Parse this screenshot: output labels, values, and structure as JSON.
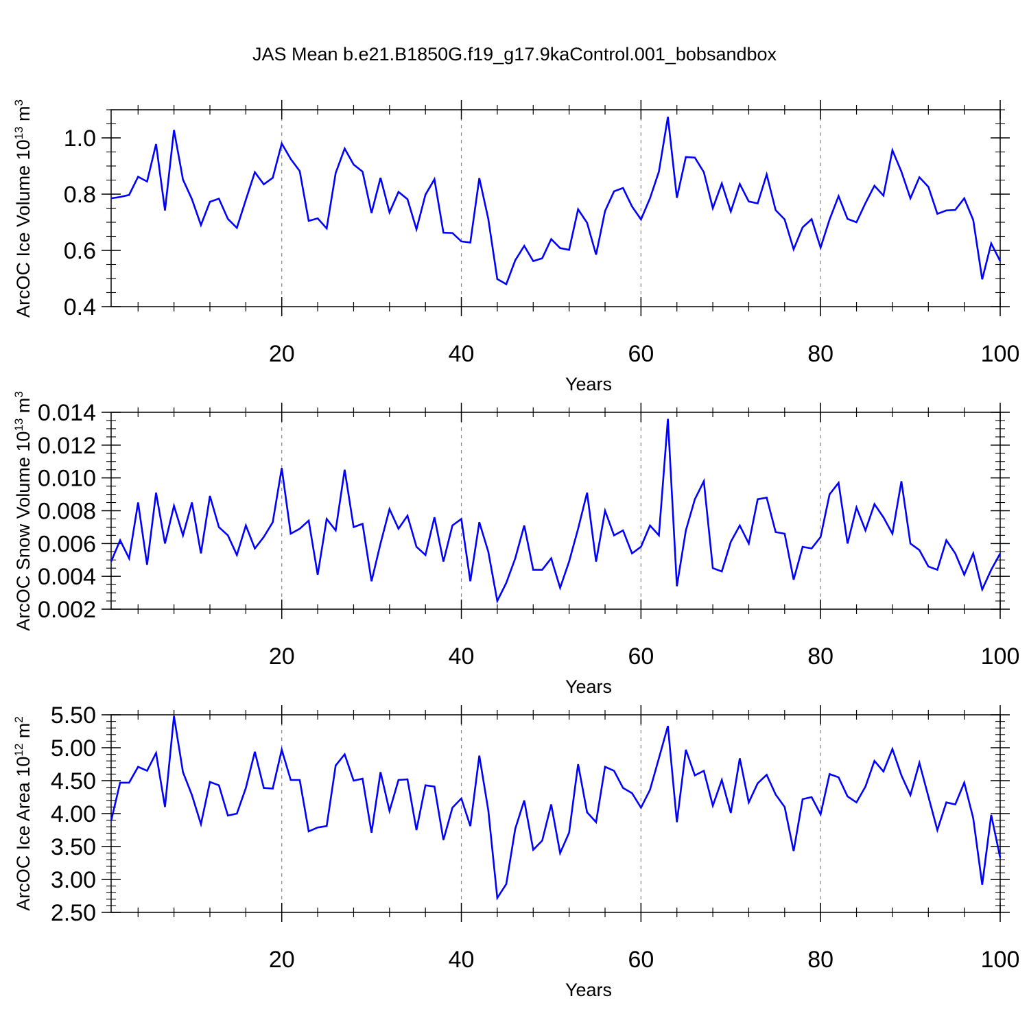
{
  "title": "JAS Mean b.e21.B1850G.f19_g17.9kaControl.001_bobsandbox",
  "colors": {
    "line": "#0000ff",
    "axis": "#000000",
    "grid": "#888888"
  },
  "chart_data": [
    {
      "type": "line",
      "ylabel": "ArcOC Ice Volume 10",
      "ylabel_sup_exp": "13",
      "ylabel_unit": "m",
      "ylabel_unit_sup": "3",
      "xlabel": "Years",
      "xlim": [
        1,
        100
      ],
      "ylim": [
        0.4,
        1.1
      ],
      "xticks": [
        20,
        40,
        60,
        80,
        100
      ],
      "xtick_labels": [
        "20",
        "40",
        "60",
        "80",
        "100"
      ],
      "yticks": [
        0.4,
        0.6,
        0.8,
        1.0
      ],
      "ytick_labels": [
        "0.4",
        "0.6",
        "0.8",
        "1.0"
      ],
      "x_minor_step": 4,
      "y_minor_step": 0.05,
      "grid": "vertical dashed at major x ticks",
      "series": [
        {
          "values": [
            0.785,
            0.79,
            0.797,
            0.862,
            0.845,
            0.978,
            0.742,
            1.028,
            0.852,
            0.782,
            0.69,
            0.773,
            0.784,
            0.712,
            0.68,
            0.78,
            0.878,
            0.835,
            0.858,
            0.98,
            0.925,
            0.882,
            0.705,
            0.714,
            0.678,
            0.875,
            0.962,
            0.905,
            0.88,
            0.733,
            0.858,
            0.735,
            0.808,
            0.782,
            0.675,
            0.798,
            0.853,
            0.663,
            0.662,
            0.632,
            0.628,
            0.857,
            0.712,
            0.498,
            0.48,
            0.565,
            0.616,
            0.562,
            0.572,
            0.64,
            0.608,
            0.602,
            0.746,
            0.698,
            0.585,
            0.74,
            0.81,
            0.822,
            0.756,
            0.71,
            0.785,
            0.88,
            1.075,
            0.787,
            0.932,
            0.93,
            0.878,
            0.75,
            0.838,
            0.738,
            0.836,
            0.774,
            0.767,
            0.87,
            0.743,
            0.71,
            0.604,
            0.682,
            0.711,
            0.61,
            0.71,
            0.793,
            0.712,
            0.7,
            0.768,
            0.83,
            0.795,
            0.956,
            0.88,
            0.785,
            0.86,
            0.826,
            0.73,
            0.742,
            0.744,
            0.785,
            0.708,
            0.497,
            0.625,
            0.562
          ]
        }
      ]
    },
    {
      "type": "line",
      "ylabel": "ArcOC Snow Volume 10",
      "ylabel_sup_exp": "13",
      "ylabel_unit": "m",
      "ylabel_unit_sup": "3",
      "xlabel": "Years",
      "xlim": [
        1,
        100
      ],
      "ylim": [
        0.002,
        0.014
      ],
      "xticks": [
        20,
        40,
        60,
        80,
        100
      ],
      "xtick_labels": [
        "20",
        "40",
        "60",
        "80",
        "100"
      ],
      "yticks": [
        0.002,
        0.004,
        0.006,
        0.008,
        0.01,
        0.012,
        0.014
      ],
      "ytick_labels": [
        "0.002",
        "0.004",
        "0.006",
        "0.008",
        "0.010",
        "0.012",
        "0.014"
      ],
      "x_minor_step": 4,
      "y_minor_step": 0.0005,
      "grid": "vertical dashed at major x ticks",
      "series": [
        {
          "values": [
            0.0049,
            0.0062,
            0.0051,
            0.0085,
            0.0047,
            0.0091,
            0.006,
            0.0083,
            0.0065,
            0.0085,
            0.0054,
            0.0089,
            0.007,
            0.0065,
            0.0053,
            0.0071,
            0.0057,
            0.0064,
            0.0073,
            0.0106,
            0.0066,
            0.0069,
            0.0074,
            0.0041,
            0.0075,
            0.0068,
            0.0105,
            0.007,
            0.0072,
            0.0037,
            0.006,
            0.0081,
            0.0069,
            0.0077,
            0.0058,
            0.0053,
            0.0076,
            0.0049,
            0.0071,
            0.0075,
            0.0037,
            0.0073,
            0.0055,
            0.0025,
            0.0036,
            0.0051,
            0.0071,
            0.0044,
            0.0044,
            0.0051,
            0.0033,
            0.0049,
            0.0069,
            0.0091,
            0.0049,
            0.008,
            0.0065,
            0.0068,
            0.0054,
            0.0058,
            0.0071,
            0.0065,
            0.0136,
            0.0034,
            0.0068,
            0.0087,
            0.0098,
            0.0045,
            0.0043,
            0.0061,
            0.0071,
            0.006,
            0.0087,
            0.0088,
            0.0067,
            0.0066,
            0.0038,
            0.0058,
            0.0057,
            0.0064,
            0.009,
            0.0097,
            0.006,
            0.0082,
            0.0068,
            0.0084,
            0.0076,
            0.0066,
            0.0098,
            0.006,
            0.0056,
            0.0046,
            0.0044,
            0.0062,
            0.0054,
            0.0041,
            0.0054,
            0.0032,
            0.0044,
            0.0054
          ]
        }
      ]
    },
    {
      "type": "line",
      "ylabel": "ArcOC Ice Area 10",
      "ylabel_sup_exp": "12",
      "ylabel_unit": "m",
      "ylabel_unit_sup": "2",
      "xlabel": "Years",
      "xlim": [
        1,
        100
      ],
      "ylim": [
        2.5,
        5.5
      ],
      "xticks": [
        20,
        40,
        60,
        80,
        100
      ],
      "xtick_labels": [
        "20",
        "40",
        "60",
        "80",
        "100"
      ],
      "yticks": [
        2.5,
        3.0,
        3.5,
        4.0,
        4.5,
        5.0,
        5.5
      ],
      "ytick_labels": [
        "2.50",
        "3.00",
        "3.50",
        "4.00",
        "4.50",
        "5.00",
        "5.50"
      ],
      "x_minor_step": 4,
      "y_minor_step": 0.1,
      "grid": "vertical dashed at major x ticks",
      "series": [
        {
          "values": [
            3.89,
            4.47,
            4.47,
            4.71,
            4.65,
            4.92,
            4.1,
            5.48,
            4.63,
            4.28,
            3.84,
            4.48,
            4.43,
            3.97,
            4.0,
            4.39,
            4.94,
            4.39,
            4.38,
            4.97,
            4.51,
            4.51,
            3.73,
            3.79,
            3.81,
            4.73,
            4.9,
            4.5,
            4.53,
            3.71,
            4.63,
            4.04,
            4.51,
            4.52,
            3.75,
            4.43,
            4.41,
            3.6,
            4.09,
            4.23,
            3.81,
            4.88,
            4.05,
            2.72,
            2.93,
            3.77,
            4.2,
            3.45,
            3.59,
            4.14,
            3.4,
            3.71,
            4.75,
            4.02,
            3.87,
            4.71,
            4.65,
            4.39,
            4.31,
            4.09,
            4.36,
            4.84,
            5.33,
            3.87,
            4.97,
            4.58,
            4.65,
            4.12,
            4.51,
            4.01,
            4.84,
            4.17,
            4.46,
            4.59,
            4.29,
            4.1,
            3.43,
            4.22,
            4.25,
            3.99,
            4.6,
            4.55,
            4.26,
            4.17,
            4.41,
            4.8,
            4.64,
            4.98,
            4.58,
            4.28,
            4.77,
            4.26,
            3.75,
            4.17,
            4.14,
            4.47,
            3.93,
            2.92,
            3.98,
            3.33
          ]
        }
      ]
    }
  ]
}
